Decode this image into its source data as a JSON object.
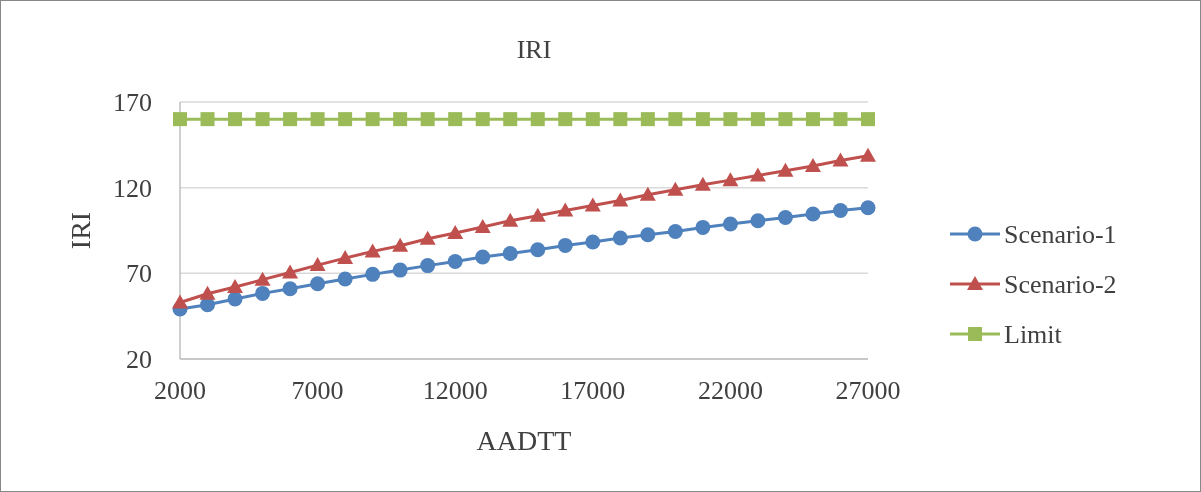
{
  "chart_data": {
    "type": "line",
    "title": "IRI",
    "xlabel": "AADTT",
    "ylabel": "IRI",
    "x": [
      2000,
      3000,
      4000,
      5000,
      6000,
      7000,
      8000,
      9000,
      10000,
      11000,
      12000,
      13000,
      14000,
      15000,
      16000,
      17000,
      18000,
      19000,
      20000,
      21000,
      22000,
      23000,
      24000,
      25000,
      26000,
      27000
    ],
    "xlim": [
      2000,
      27000
    ],
    "xticks": [
      2000,
      7000,
      12000,
      17000,
      22000,
      27000
    ],
    "ylim": [
      20,
      170
    ],
    "yticks": [
      20,
      70,
      120,
      170
    ],
    "grid": "y",
    "legend": "right",
    "line_style": "solid",
    "series": [
      {
        "name": "Scenario-1",
        "color": "#4f81bd",
        "marker": "circle",
        "values": [
          49.2,
          51.7,
          55.0,
          58.3,
          61.0,
          63.9,
          66.7,
          69.4,
          71.9,
          74.5,
          76.9,
          79.5,
          81.6,
          83.8,
          86.3,
          88.3,
          90.6,
          92.5,
          94.4,
          96.8,
          98.8,
          100.7,
          102.6,
          104.6,
          106.7,
          108.3
        ]
      },
      {
        "name": "Scenario-2",
        "color": "#c0504d",
        "marker": "triangle",
        "values": [
          53.0,
          58.1,
          62.0,
          66.3,
          70.5,
          74.8,
          78.9,
          82.8,
          86.1,
          90.2,
          93.5,
          97.0,
          100.7,
          103.6,
          106.7,
          109.6,
          112.5,
          115.9,
          118.8,
          121.7,
          124.4,
          127.1,
          129.9,
          132.6,
          135.9,
          138.6
        ]
      },
      {
        "name": "Limit",
        "color": "#9bbb59",
        "marker": "square",
        "values": [
          160,
          160,
          160,
          160,
          160,
          160,
          160,
          160,
          160,
          160,
          160,
          160,
          160,
          160,
          160,
          160,
          160,
          160,
          160,
          160,
          160,
          160,
          160,
          160,
          160,
          160
        ]
      }
    ]
  }
}
